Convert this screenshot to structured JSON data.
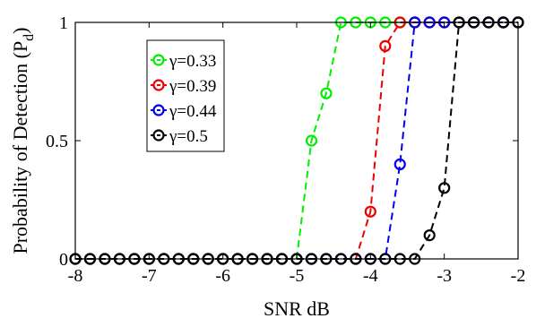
{
  "chart_data": {
    "type": "line",
    "xlabel": "SNR dB",
    "ylabel_main": "Probability of Detection (P",
    "ylabel_sub": "d",
    "ylabel_close": ")",
    "xlim": [
      -8,
      -2
    ],
    "ylim": [
      0,
      1
    ],
    "xticks": [
      -8,
      -7,
      -6,
      -5,
      -4,
      -3,
      -2
    ],
    "yticks": [
      0,
      0.5,
      1
    ],
    "x": [
      -8,
      -7.8,
      -7.6,
      -7.4,
      -7.2,
      -7,
      -6.8,
      -6.6,
      -6.4,
      -6.2,
      -6,
      -5.8,
      -5.6,
      -5.4,
      -5.2,
      -5,
      -4.8,
      -4.6,
      -4.4,
      -4.2,
      -4,
      -3.8,
      -3.6,
      -3.4,
      -3.2,
      -3,
      -2.8,
      -2.6,
      -2.4,
      -2.2,
      -2
    ],
    "legend_position": "upper-left",
    "grid": false,
    "series": [
      {
        "name": "γ=0.33",
        "color": "#00ee00",
        "values": [
          0,
          0,
          0,
          0,
          0,
          0,
          0,
          0,
          0,
          0,
          0,
          0,
          0,
          0,
          0,
          0,
          0.5,
          0.7,
          1,
          1,
          1,
          1,
          1,
          1,
          1,
          1,
          1,
          1,
          1,
          1,
          1
        ]
      },
      {
        "name": "γ=0.39",
        "color": "#ee0000",
        "values": [
          0,
          0,
          0,
          0,
          0,
          0,
          0,
          0,
          0,
          0,
          0,
          0,
          0,
          0,
          0,
          0,
          0,
          0,
          0,
          0,
          0.2,
          0.9,
          1,
          1,
          1,
          1,
          1,
          1,
          1,
          1,
          1
        ]
      },
      {
        "name": "γ=0.44",
        "color": "#0000ee",
        "values": [
          0,
          0,
          0,
          0,
          0,
          0,
          0,
          0,
          0,
          0,
          0,
          0,
          0,
          0,
          0,
          0,
          0,
          0,
          0,
          0,
          0,
          0,
          0.4,
          1,
          1,
          1,
          1,
          1,
          1,
          1,
          1
        ]
      },
      {
        "name": "γ=0.5",
        "color": "#000000",
        "values": [
          0,
          0,
          0,
          0,
          0,
          0,
          0,
          0,
          0,
          0,
          0,
          0,
          0,
          0,
          0,
          0,
          0,
          0,
          0,
          0,
          0,
          0,
          0,
          0,
          0.1,
          0.3,
          1,
          1,
          1,
          1,
          1
        ]
      }
    ]
  }
}
